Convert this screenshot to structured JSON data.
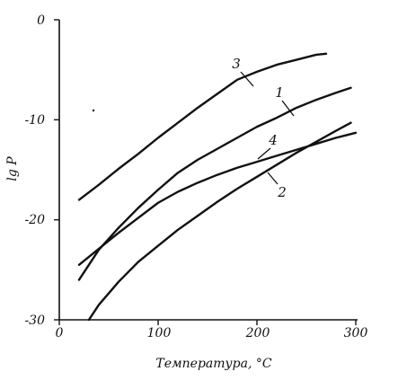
{
  "chart_data": {
    "type": "line",
    "xlabel": "Температура, °С",
    "ylabel": "lg P",
    "xlim": [
      0,
      300
    ],
    "ylim": [
      -30,
      0
    ],
    "x_ticks": [
      "0",
      "100",
      "200",
      "300"
    ],
    "y_ticks": [
      "0",
      "-10",
      "-20",
      "-30"
    ],
    "grid": false,
    "legend": "inline numeric labels",
    "series": [
      {
        "name": "1",
        "x": [
          20,
          40,
          60,
          80,
          100,
          120,
          140,
          160,
          180,
          200,
          220,
          240,
          260,
          280,
          295
        ],
        "y": [
          -26.0,
          -23.0,
          -20.8,
          -18.8,
          -17.0,
          -15.3,
          -14.0,
          -12.9,
          -11.8,
          -10.7,
          -9.8,
          -8.8,
          -8.0,
          -7.3,
          -6.8
        ]
      },
      {
        "name": "2",
        "x": [
          30,
          40,
          60,
          80,
          100,
          120,
          140,
          160,
          180,
          200,
          220,
          240,
          260,
          280,
          295
        ],
        "y": [
          -30.0,
          -28.5,
          -26.2,
          -24.2,
          -22.6,
          -21.0,
          -19.6,
          -18.2,
          -16.9,
          -15.7,
          -14.5,
          -13.3,
          -12.2,
          -11.1,
          -10.3
        ]
      },
      {
        "name": "3",
        "x": [
          20,
          40,
          60,
          80,
          100,
          120,
          140,
          160,
          180,
          200,
          220,
          240,
          260,
          270
        ],
        "y": [
          -18.0,
          -16.5,
          -14.9,
          -13.4,
          -11.8,
          -10.3,
          -8.8,
          -7.4,
          -6.0,
          -5.2,
          -4.5,
          -4.0,
          -3.5,
          -3.4
        ]
      },
      {
        "name": "4",
        "x": [
          20,
          40,
          60,
          80,
          100,
          120,
          140,
          160,
          180,
          200,
          220,
          240,
          260,
          280,
          300
        ],
        "y": [
          -24.5,
          -22.9,
          -21.3,
          -19.8,
          -18.3,
          -17.2,
          -16.3,
          -15.5,
          -14.8,
          -14.2,
          -13.6,
          -13.0,
          -12.4,
          -11.8,
          -11.3
        ]
      }
    ]
  }
}
